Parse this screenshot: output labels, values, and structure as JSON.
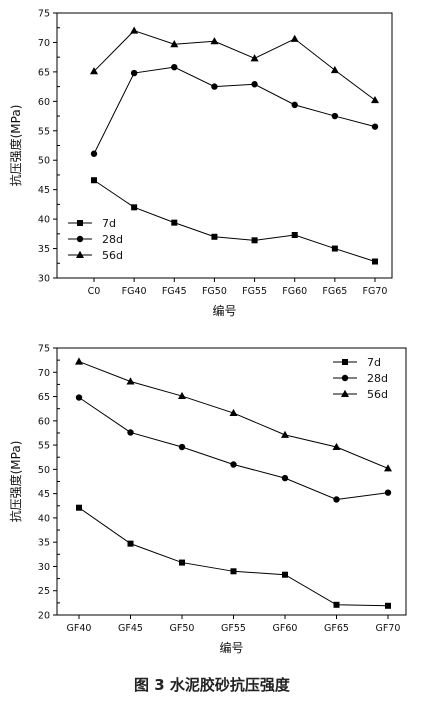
{
  "figure": {
    "caption": "图 3  水泥胶砂抗压强度"
  },
  "chart_data": [
    {
      "type": "line",
      "xlabel": "编号",
      "ylabel": "抗压强度(MPa)",
      "ylim": [
        30,
        75
      ],
      "yticks": [
        30,
        35,
        40,
        45,
        50,
        55,
        60,
        65,
        70,
        75
      ],
      "categories": [
        "C0",
        "FG40",
        "FG45",
        "FG50",
        "FG55",
        "FG60",
        "FG65",
        "FG70"
      ],
      "legend_position": "bottom-left",
      "series": [
        {
          "name": "7d",
          "marker": "square",
          "values": [
            46.6,
            42.0,
            39.4,
            37.0,
            36.4,
            37.3,
            35.0,
            32.8
          ]
        },
        {
          "name": "28d",
          "marker": "circle",
          "values": [
            51.1,
            64.8,
            65.8,
            62.5,
            62.9,
            59.4,
            57.5,
            55.7
          ]
        },
        {
          "name": "56d",
          "marker": "triangle",
          "values": [
            65.1,
            72.0,
            69.7,
            70.2,
            67.3,
            70.6,
            65.3,
            60.2
          ]
        }
      ]
    },
    {
      "type": "line",
      "xlabel": "编号",
      "ylabel": "抗压强度(MPa)",
      "ylim": [
        20,
        75
      ],
      "yticks": [
        20,
        25,
        30,
        35,
        40,
        45,
        50,
        55,
        60,
        65,
        70,
        75
      ],
      "categories": [
        "GF40",
        "GF45",
        "GF50",
        "GF55",
        "GF60",
        "GF65",
        "GF70"
      ],
      "legend_position": "top-right",
      "series": [
        {
          "name": "7d",
          "marker": "square",
          "values": [
            42.1,
            34.7,
            30.8,
            29.0,
            28.3,
            22.1,
            21.9
          ]
        },
        {
          "name": "28d",
          "marker": "circle",
          "values": [
            64.8,
            57.6,
            54.6,
            51.0,
            48.2,
            43.8,
            45.2
          ]
        },
        {
          "name": "56d",
          "marker": "triangle",
          "values": [
            72.2,
            68.1,
            65.1,
            61.6,
            57.1,
            54.6,
            50.2
          ]
        }
      ]
    }
  ]
}
